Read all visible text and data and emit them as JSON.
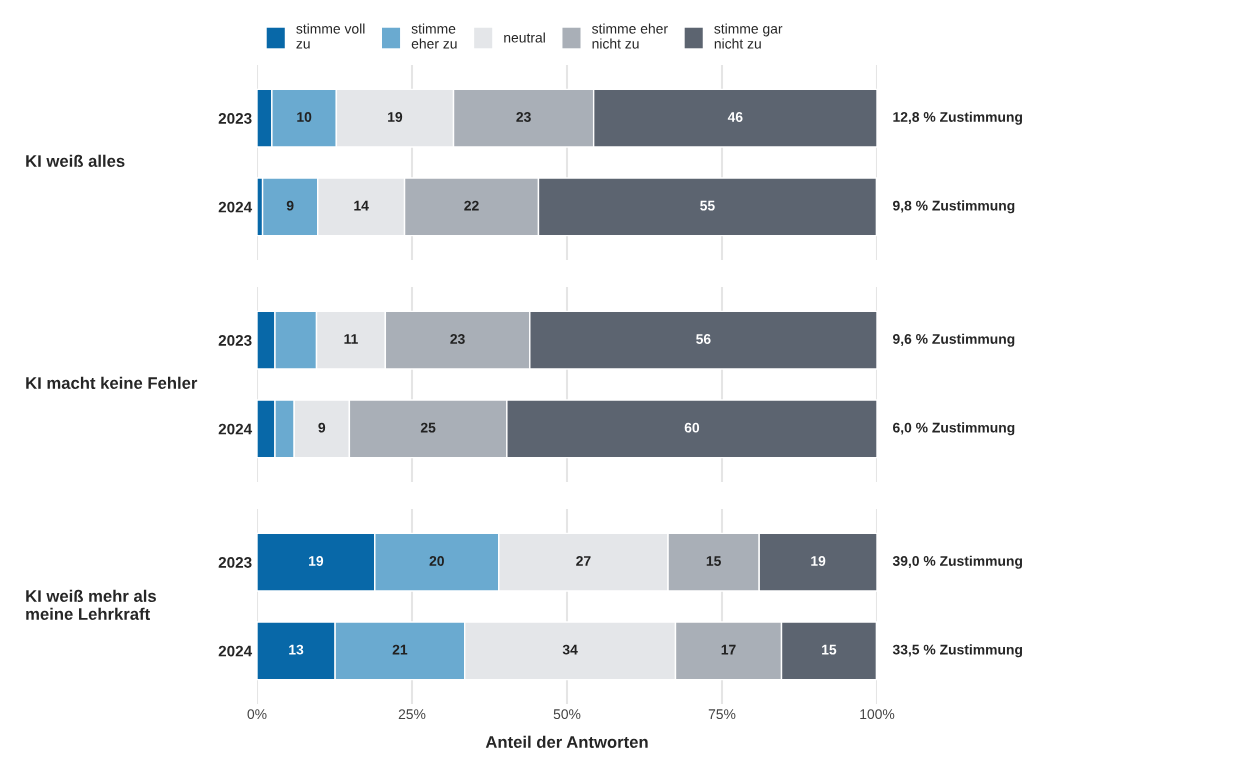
{
  "chart_data": [
    {
      "type": "bar",
      "orientation": "horizontal",
      "stacked": true,
      "ylabel": "KI weiß alles",
      "categories": [
        "2023",
        "2024"
      ],
      "xlim": [
        0,
        100
      ],
      "xticks": [
        0,
        25,
        50,
        75,
        100
      ],
      "tick_labels": "y",
      "grid": "x",
      "legend": "top",
      "series": [
        {
          "name": "stimme voll\nzu",
          "color": "#0868a8",
          "values": [
            2.4,
            0.9
          ],
          "value_labels": [
            null,
            null
          ]
        },
        {
          "name": "stimme\neher zu",
          "color": "#6aaad0",
          "values": [
            10.4,
            8.9
          ],
          "value_labels": [
            "10",
            "9"
          ]
        },
        {
          "name": "neutral",
          "color": "#e4e6e9",
          "values": [
            18.9,
            14.0
          ],
          "value_labels": [
            "19",
            "14"
          ]
        },
        {
          "name": "stimme eher\nnicht zu",
          "color": "#a9afb7",
          "values": [
            22.6,
            21.6
          ],
          "value_labels": [
            "23",
            "22"
          ]
        },
        {
          "name": "stimme gar\nnicht zu",
          "color": "#5c6470",
          "values": [
            45.7,
            54.5
          ],
          "value_labels": [
            "46",
            "55"
          ]
        }
      ],
      "annotations": [
        "12,8 % Zustimmung",
        "9,8 % Zustimmung"
      ]
    },
    {
      "type": "bar",
      "orientation": "horizontal",
      "stacked": true,
      "ylabel": "KI macht keine Fehler",
      "categories": [
        "2023",
        "2024"
      ],
      "xlim": [
        0,
        100
      ],
      "xticks": [
        0,
        25,
        50,
        75,
        100
      ],
      "tick_labels": "y",
      "grid": "x",
      "series": [
        {
          "color": "#0868a8",
          "values": [
            2.9,
            2.9
          ],
          "value_labels": [
            null,
            null
          ]
        },
        {
          "color": "#6aaad0",
          "values": [
            6.7,
            3.1
          ],
          "value_labels": [
            null,
            null
          ]
        },
        {
          "color": "#e4e6e9",
          "values": [
            11.1,
            8.9
          ],
          "value_labels": [
            "11",
            "9"
          ]
        },
        {
          "color": "#a9afb7",
          "values": [
            23.3,
            25.4
          ],
          "value_labels": [
            "23",
            "25"
          ]
        },
        {
          "color": "#5c6470",
          "values": [
            56.0,
            59.7
          ],
          "value_labels": [
            "56",
            "60"
          ]
        }
      ],
      "annotations": [
        "9,6 % Zustimmung",
        "6,0 % Zustimmung"
      ]
    },
    {
      "type": "bar",
      "orientation": "horizontal",
      "stacked": true,
      "ylabel": "KI weiß mehr als\nmeine Lehrkraft",
      "xlabel": "Anteil der Antworten",
      "categories": [
        "2023",
        "2024"
      ],
      "xlim": [
        0,
        100
      ],
      "xticks": [
        {
          "value": 0,
          "label": "0%"
        },
        {
          "value": 25,
          "label": "25%"
        },
        {
          "value": 50,
          "label": "50%"
        },
        {
          "value": 75,
          "label": "75%"
        },
        {
          "value": 100,
          "label": "100%"
        }
      ],
      "grid": "x",
      "series": [
        {
          "color": "#0868a8",
          "values": [
            19.0,
            12.6
          ],
          "value_labels": [
            "19",
            "13"
          ]
        },
        {
          "color": "#6aaad0",
          "values": [
            20.0,
            20.9
          ],
          "value_labels": [
            "20",
            "21"
          ]
        },
        {
          "color": "#e4e6e9",
          "values": [
            27.3,
            34.0
          ],
          "value_labels": [
            "27",
            "34"
          ]
        },
        {
          "color": "#a9afb7",
          "values": [
            14.7,
            17.1
          ],
          "value_labels": [
            "15",
            "17"
          ]
        },
        {
          "color": "#5c6470",
          "values": [
            19.0,
            15.3
          ],
          "value_labels": [
            "19",
            "15"
          ]
        }
      ],
      "annotations": [
        "39,0 % Zustimmung",
        "33,5 % Zustimmung"
      ]
    }
  ]
}
